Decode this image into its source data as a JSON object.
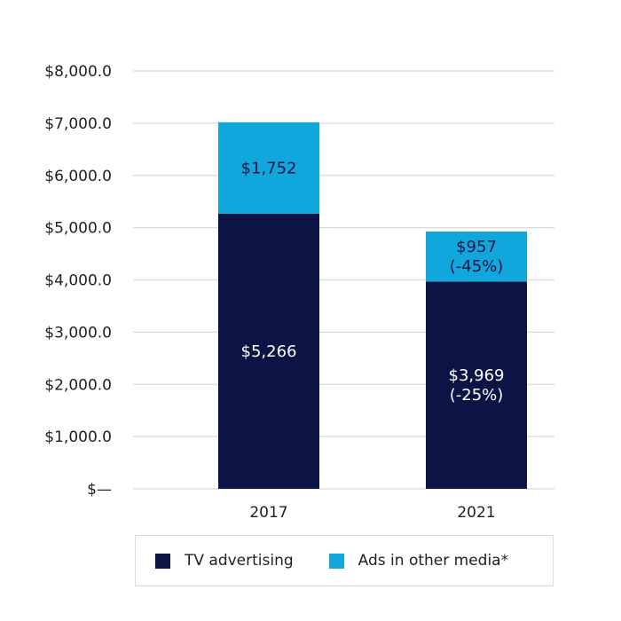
{
  "colors": {
    "tv": "#0b1445",
    "other": "#12a7dc",
    "grid": "#d9d9d9",
    "tv_text": "#ffffff",
    "other_text": "#0b1445"
  },
  "chart_data": {
    "type": "bar",
    "stacked": true,
    "categories": [
      "2017",
      "2021"
    ],
    "series": [
      {
        "name": "TV advertising",
        "values": [
          5266,
          3969
        ],
        "labels": [
          [
            "$5,266"
          ],
          [
            "$3,969",
            "(-25%)"
          ]
        ]
      },
      {
        "name": "Ads in other media*",
        "values": [
          1752,
          957
        ],
        "labels": [
          [
            "$1,752"
          ],
          [
            "$957",
            "(-45%)"
          ]
        ]
      }
    ],
    "y_ticks": [
      0,
      1000,
      2000,
      3000,
      4000,
      5000,
      6000,
      7000,
      8000
    ],
    "y_tick_labels": [
      "$—",
      "$1,000.0",
      "$2,000.0",
      "$3,000.0",
      "$4,000.0",
      "$5,000.0",
      "$6,000.0",
      "$7,000.0",
      "$8,000.0"
    ],
    "ylim": [
      0,
      8000
    ],
    "grid": true,
    "legend_position": "bottom",
    "title": "",
    "xlabel": "",
    "ylabel": ""
  }
}
